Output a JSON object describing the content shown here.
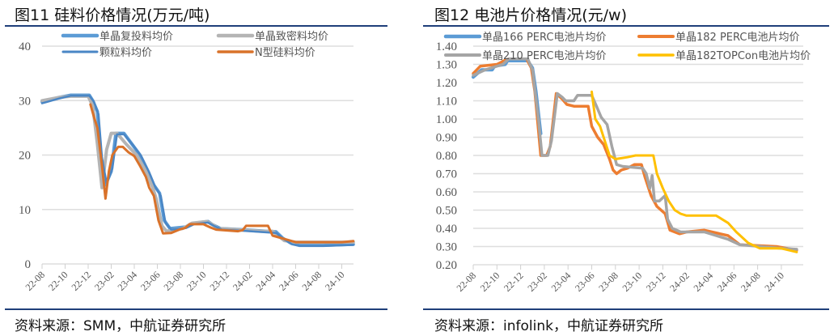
{
  "chart_data": [
    {
      "type": "line",
      "title": "图11  硅料价格情况(万元/吨)",
      "source": "资料来源：SMM，中航证券研究所",
      "ylim": [
        0,
        40
      ],
      "yticks": [
        "0",
        "10",
        "20",
        "30",
        "40"
      ],
      "ytick_values": [
        0,
        10,
        20,
        30,
        40
      ],
      "xtick_labels": [
        "22-08",
        "22-10",
        "22-12",
        "23-02",
        "23-04",
        "23-06",
        "23-08",
        "23-10",
        "23-12",
        "24-02",
        "24-04",
        "24-06",
        "24-08",
        "24-10"
      ],
      "x_unit": "months since 22-08",
      "grid": true,
      "legend_placement": "top",
      "series": [
        {
          "name": "单晶复投料均价",
          "color": "#5b9bd5",
          "width": 4,
          "points": [
            [
              0,
              29.8
            ],
            [
              1.5,
              30.6
            ],
            [
              2.5,
              31
            ],
            [
              4.1,
              31
            ],
            [
              4.4,
              30
            ],
            [
              4.8,
              28
            ],
            [
              5.1,
              20
            ],
            [
              5.5,
              14.5
            ],
            [
              6,
              17
            ],
            [
              6.4,
              24
            ],
            [
              7.1,
              24
            ],
            [
              7.8,
              22
            ],
            [
              8.5,
              20
            ],
            [
              9.2,
              17
            ],
            [
              9.7,
              14.5
            ],
            [
              10.2,
              13
            ],
            [
              10.6,
              8
            ],
            [
              11.1,
              6.5
            ],
            [
              12.5,
              6.8
            ],
            [
              13.2,
              7.5
            ],
            [
              14.4,
              7.8
            ],
            [
              14.8,
              7.2
            ],
            [
              15.5,
              6.5
            ],
            [
              17.4,
              6.3
            ],
            [
              19.5,
              6
            ],
            [
              20.3,
              5.9
            ],
            [
              20.9,
              4.7
            ],
            [
              21.6,
              3.8
            ],
            [
              22.3,
              3.4
            ],
            [
              24.4,
              3.4
            ],
            [
              27,
              3.6
            ]
          ]
        },
        {
          "name": "单晶致密料均价",
          "color": "#b4b4b4",
          "width": 4,
          "points": [
            [
              0,
              30
            ],
            [
              1.5,
              30.6
            ],
            [
              2.5,
              30.8
            ],
            [
              4,
              30.8
            ],
            [
              4.4,
              29
            ],
            [
              4.8,
              22
            ],
            [
              5.2,
              14
            ],
            [
              5.6,
              21
            ],
            [
              6,
              24
            ],
            [
              6.5,
              24
            ],
            [
              7.3,
              22
            ],
            [
              8.2,
              20
            ],
            [
              9,
              17
            ],
            [
              9.6,
              14
            ],
            [
              9.9,
              12
            ],
            [
              10.4,
              7
            ],
            [
              10.8,
              6
            ],
            [
              11.5,
              6.3
            ],
            [
              12.2,
              6.5
            ],
            [
              13,
              7.5
            ],
            [
              14.3,
              7.8
            ],
            [
              14.8,
              7.2
            ],
            [
              15.3,
              6.5
            ],
            [
              17,
              6.3
            ],
            [
              19,
              6
            ],
            [
              20,
              6
            ],
            [
              21,
              4.3
            ],
            [
              22,
              4
            ],
            [
              27,
              4
            ]
          ]
        },
        {
          "name": "颗粒料均价",
          "color": "#4a86c5",
          "width": 2.5,
          "points": [
            [
              0,
              29.5
            ],
            [
              1.5,
              30.4
            ],
            [
              2.5,
              30.9
            ],
            [
              4.1,
              30.9
            ],
            [
              4.5,
              29.8
            ],
            [
              4.9,
              27.5
            ],
            [
              5.2,
              19.5
            ],
            [
              5.6,
              14.8
            ],
            [
              6.1,
              17.5
            ],
            [
              6.5,
              23.8
            ],
            [
              7.1,
              23.8
            ],
            [
              7.9,
              21.8
            ],
            [
              8.6,
              19.8
            ],
            [
              9.3,
              16.8
            ],
            [
              9.8,
              14.2
            ],
            [
              10.3,
              12.5
            ],
            [
              10.7,
              7.6
            ],
            [
              11.2,
              6.3
            ],
            [
              12.5,
              6.6
            ],
            [
              13.2,
              7.3
            ],
            [
              14.4,
              7.6
            ],
            [
              14.9,
              7
            ],
            [
              15.6,
              6.3
            ],
            [
              17.4,
              6.1
            ],
            [
              19.5,
              5.8
            ],
            [
              20.3,
              5.7
            ],
            [
              21,
              4.5
            ],
            [
              21.7,
              3.6
            ],
            [
              22.4,
              3.3
            ],
            [
              24.4,
              3.3
            ],
            [
              27,
              3.5
            ]
          ]
        },
        {
          "name": "N型硅料均价",
          "color": "#d9722a",
          "width": 3,
          "points": [
            [
              4.2,
              29.3
            ],
            [
              4.5,
              27
            ],
            [
              4.8,
              25
            ],
            [
              5.2,
              18
            ],
            [
              5.5,
              12
            ],
            [
              5.8,
              17
            ],
            [
              6.1,
              20
            ],
            [
              6.6,
              21.5
            ],
            [
              7,
              21.5
            ],
            [
              7.5,
              20.5
            ],
            [
              8,
              19.8
            ],
            [
              8.5,
              18
            ],
            [
              9,
              16
            ],
            [
              9.3,
              14
            ],
            [
              9.7,
              12.5
            ],
            [
              10.1,
              8
            ],
            [
              10.5,
              5.6
            ],
            [
              11.2,
              5.7
            ],
            [
              11.9,
              6.3
            ],
            [
              12.4,
              6.6
            ],
            [
              12.8,
              7.3
            ],
            [
              14,
              7.3
            ],
            [
              14.6,
              6.7
            ],
            [
              15.1,
              6.3
            ],
            [
              17,
              6
            ],
            [
              17.4,
              6.2
            ],
            [
              17.7,
              7
            ],
            [
              19.6,
              7
            ],
            [
              20,
              5.2
            ],
            [
              21,
              4.6
            ],
            [
              22,
              4
            ],
            [
              26,
              4
            ],
            [
              27,
              4.2
            ]
          ]
        }
      ]
    },
    {
      "type": "line",
      "title": "图12  电池片价格情况(元/w)",
      "source": "资料来源：infolink，中航证券研究所",
      "ylim": [
        0.2,
        1.4
      ],
      "yticks": [
        "0.20",
        "0.30",
        "0.40",
        "0.50",
        "0.60",
        "0.70",
        "0.80",
        "0.90",
        "1.00",
        "1.10",
        "1.20",
        "1.30",
        "1.40"
      ],
      "ytick_values": [
        0.2,
        0.3,
        0.4,
        0.5,
        0.6,
        0.7,
        0.8,
        0.9,
        1.0,
        1.1,
        1.2,
        1.3,
        1.4
      ],
      "xtick_labels": [
        "22-08",
        "22-10",
        "22-12",
        "23-02",
        "23-04",
        "23-06",
        "23-08",
        "23-10",
        "23-12",
        "24-02",
        "24-04",
        "24-06",
        "24-08",
        "24-10"
      ],
      "x_unit": "months since 22-08",
      "grid": true,
      "legend_placement": "top",
      "series": [
        {
          "name": "单晶166 PERC电池片均价",
          "color": "#5b9bd5",
          "width": 4,
          "points": [
            [
              0,
              1.23
            ],
            [
              0.7,
              1.27
            ],
            [
              1.6,
              1.27
            ],
            [
              1.8,
              1.29
            ],
            [
              2.7,
              1.3
            ],
            [
              2.9,
              1.32
            ],
            [
              4.6,
              1.32
            ],
            [
              5,
              1.28
            ],
            [
              5.3,
              1.15
            ],
            [
              5.7,
              0.92
            ]
          ]
        },
        {
          "name": "单晶182 PERC电池片均价",
          "color": "#ed7d31",
          "width": 3.5,
          "points": [
            [
              0,
              1.25
            ],
            [
              0.6,
              1.29
            ],
            [
              2,
              1.3
            ],
            [
              2.6,
              1.32
            ],
            [
              3,
              1.33
            ],
            [
              4.5,
              1.33
            ],
            [
              4.9,
              1.28
            ],
            [
              5.2,
              1.15
            ],
            [
              5.7,
              0.8
            ],
            [
              6.2,
              0.8
            ],
            [
              6.5,
              0.85
            ],
            [
              7,
              1.14
            ],
            [
              7.5,
              1.11
            ],
            [
              7.9,
              1.08
            ],
            [
              8.5,
              1.07
            ],
            [
              9.7,
              1.07
            ],
            [
              10,
              0.96
            ],
            [
              10.5,
              0.9
            ],
            [
              11,
              0.86
            ],
            [
              11.5,
              0.78
            ],
            [
              11.8,
              0.72
            ],
            [
              12.1,
              0.7
            ],
            [
              12.5,
              0.72
            ],
            [
              13,
              0.73
            ],
            [
              13.6,
              0.75
            ],
            [
              14.2,
              0.75
            ],
            [
              14.5,
              0.68
            ],
            [
              15,
              0.58
            ],
            [
              15.5,
              0.52
            ],
            [
              16.2,
              0.48
            ],
            [
              16.6,
              0.39
            ],
            [
              17.4,
              0.37
            ],
            [
              18,
              0.38
            ],
            [
              19.5,
              0.39
            ],
            [
              21.5,
              0.36
            ],
            [
              22.5,
              0.31
            ],
            [
              25.6,
              0.3
            ],
            [
              27.3,
              0.28
            ]
          ]
        },
        {
          "name": "单晶210 PERC电池片均价",
          "color": "#a5a5a5",
          "width": 3.5,
          "points": [
            [
              0,
              1.24
            ],
            [
              1,
              1.27
            ],
            [
              2.5,
              1.3
            ],
            [
              3,
              1.33
            ],
            [
              4.6,
              1.33
            ],
            [
              5,
              1.27
            ],
            [
              5.5,
              1
            ],
            [
              5.8,
              0.8
            ],
            [
              6.3,
              0.8
            ],
            [
              6.6,
              0.88
            ],
            [
              7.1,
              1.14
            ],
            [
              7.5,
              1.12
            ],
            [
              7.8,
              1.1
            ],
            [
              8.5,
              1.1
            ],
            [
              8.8,
              1.13
            ],
            [
              10,
              1.13
            ],
            [
              10.4,
              1.07
            ],
            [
              10.8,
              1.01
            ],
            [
              11.3,
              0.97
            ],
            [
              11.7,
              0.85
            ],
            [
              12.1,
              0.75
            ],
            [
              12.6,
              0.74
            ],
            [
              14.3,
              0.73
            ],
            [
              14.6,
              0.7
            ],
            [
              14.9,
              0.62
            ],
            [
              15.1,
              0.69
            ],
            [
              15.3,
              0.55
            ],
            [
              15.7,
              0.55
            ],
            [
              16.2,
              0.58
            ],
            [
              16.4,
              0.45
            ],
            [
              16.8,
              0.4
            ],
            [
              17.5,
              0.38
            ],
            [
              19.5,
              0.38
            ],
            [
              20.5,
              0.36
            ],
            [
              21.5,
              0.34
            ],
            [
              22.5,
              0.31
            ],
            [
              26,
              0.29
            ],
            [
              27.3,
              0.285
            ]
          ]
        },
        {
          "name": "单晶182TOPCon电池片均价",
          "color": "#ffc000",
          "width": 3,
          "points": [
            [
              10,
              1.15
            ],
            [
              10.3,
              1
            ],
            [
              10.7,
              0.96
            ],
            [
              11,
              0.9
            ],
            [
              11.5,
              0.8
            ],
            [
              12,
              0.78
            ],
            [
              13,
              0.79
            ],
            [
              13.7,
              0.8
            ],
            [
              15.2,
              0.8
            ],
            [
              15.5,
              0.7
            ],
            [
              16,
              0.62
            ],
            [
              16.5,
              0.55
            ],
            [
              17,
              0.5
            ],
            [
              17.5,
              0.48
            ],
            [
              18,
              0.47
            ],
            [
              20.5,
              0.47
            ],
            [
              21.5,
              0.43
            ],
            [
              22.2,
              0.38
            ],
            [
              23.2,
              0.32
            ],
            [
              24.2,
              0.29
            ],
            [
              26,
              0.29
            ],
            [
              27.3,
              0.27
            ]
          ]
        }
      ]
    }
  ]
}
